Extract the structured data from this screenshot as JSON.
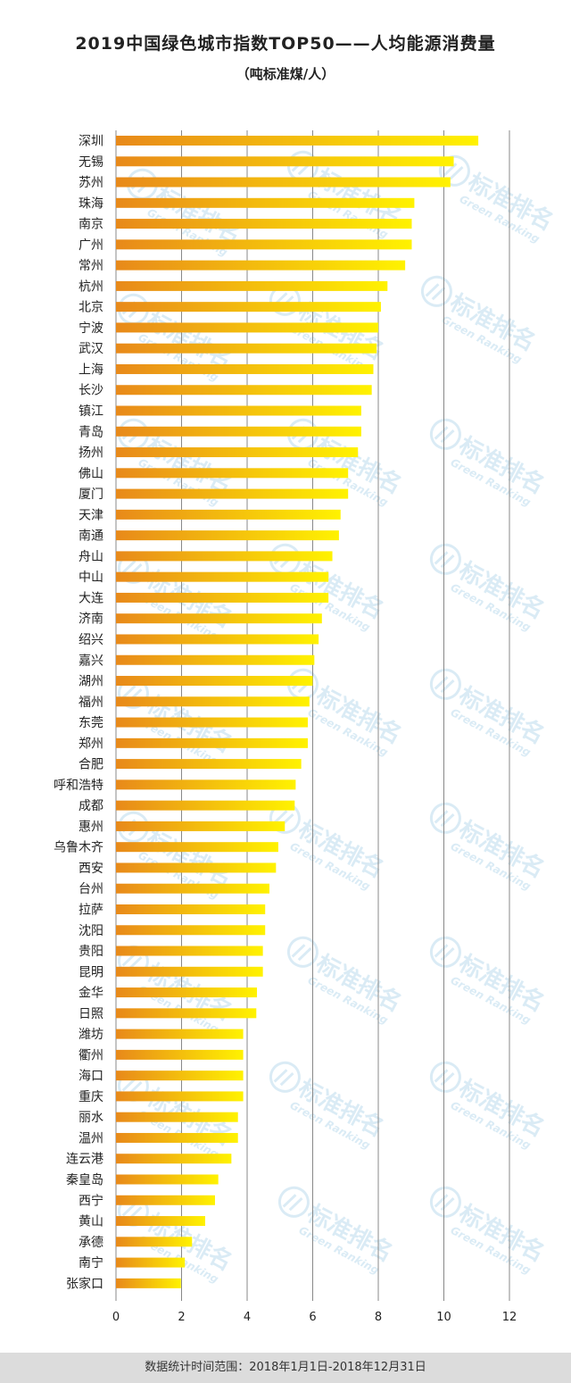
{
  "header": {
    "title": "2019中国绿色城市指数TOP50——人均能源消费量",
    "subtitle": "（吨标准煤/人）"
  },
  "footer": {
    "text": "数据统计时间范围：2018年1月1日-2018年12月31日"
  },
  "watermark": {
    "text_cn": "标准排名",
    "text_en": "Green Ranking"
  },
  "colors": {
    "bar_start": "#e8891a",
    "bar_end": "#fff200",
    "grid": "#888888"
  },
  "chart_data": {
    "type": "bar",
    "orientation": "horizontal",
    "categories": [
      "深圳",
      "无锡",
      "苏州",
      "珠海",
      "南京",
      "广州",
      "常州",
      "杭州",
      "北京",
      "宁波",
      "武汉",
      "上海",
      "长沙",
      "镇江",
      "青岛",
      "扬州",
      "佛山",
      "厦门",
      "天津",
      "南通",
      "舟山",
      "中山",
      "大连",
      "济南",
      "绍兴",
      "嘉兴",
      "湖州",
      "福州",
      "东莞",
      "郑州",
      "合肥",
      "呼和浩特",
      "成都",
      "惠州",
      "乌鲁木齐",
      "西安",
      "台州",
      "拉萨",
      "沈阳",
      "贵阳",
      "昆明",
      "金华",
      "日照",
      "潍坊",
      "衢州",
      "海口",
      "重庆",
      "丽水",
      "温州",
      "连云港",
      "秦皇岛",
      "西宁",
      "黄山",
      "承德",
      "南宁",
      "张家口"
    ],
    "values": [
      11.05,
      10.3,
      10.2,
      9.1,
      9.02,
      9.02,
      8.82,
      8.28,
      8.08,
      8.0,
      7.95,
      7.85,
      7.8,
      7.48,
      7.48,
      7.38,
      7.08,
      7.08,
      6.85,
      6.8,
      6.6,
      6.48,
      6.48,
      6.28,
      6.18,
      6.05,
      6.0,
      5.9,
      5.85,
      5.85,
      5.65,
      5.48,
      5.45,
      5.15,
      4.95,
      4.88,
      4.68,
      4.55,
      4.55,
      4.48,
      4.48,
      4.3,
      4.28,
      3.88,
      3.88,
      3.88,
      3.88,
      3.72,
      3.72,
      3.52,
      3.12,
      3.02,
      2.72,
      2.32,
      2.1,
      1.98
    ],
    "xlim": [
      0,
      12
    ],
    "xticks": [
      "0",
      "2",
      "4",
      "6",
      "8",
      "10",
      "12"
    ],
    "grid": true
  }
}
